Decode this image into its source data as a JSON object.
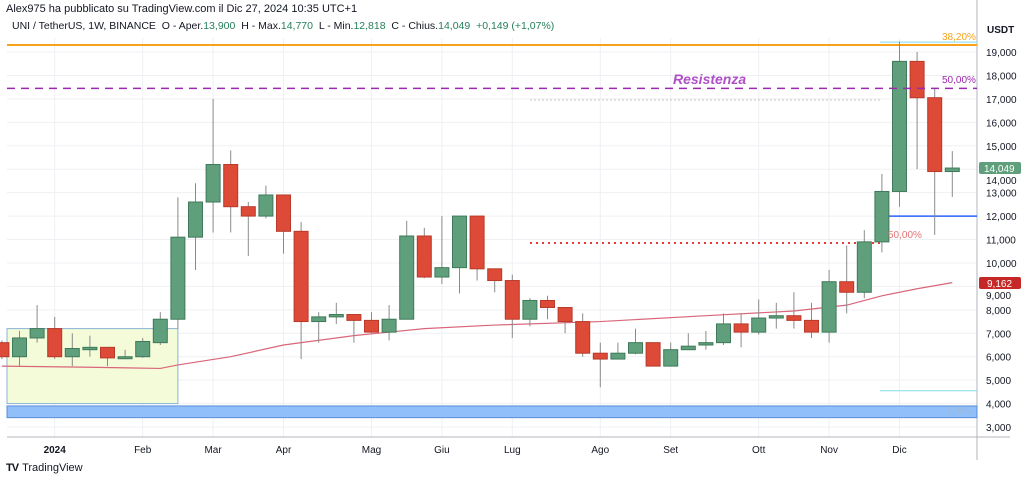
{
  "header": {
    "published": "Alex975 ha pubblicato su TradingView.com il Dic 27, 2024 10:35 UTC+1",
    "symbol": "UNI / TetherUS, 1W, BINANCE",
    "open_label": "O - Aper.",
    "open": "13,900",
    "high_label": "H - Max.",
    "high": "14,770",
    "low_label": "L - Min.",
    "low": "12,818",
    "close_label": "C - Chius.",
    "close": "14,049",
    "change": "+0,149 (+1,07%)"
  },
  "price_axis": {
    "currency": "USDT",
    "ticks": [
      "19,000",
      "18,000",
      "17,000",
      "16,000",
      "15,000",
      "14,000",
      "13,000",
      "12,000",
      "11,000",
      "10,000",
      "9,000",
      "8,000",
      "7,000",
      "6,000",
      "5,000",
      "4,000",
      "3,000"
    ],
    "tick_values": [
      19000,
      18000,
      17000,
      16000,
      15000,
      14000,
      13000,
      12000,
      11000,
      10000,
      9000,
      8000,
      7000,
      6000,
      5000,
      4000,
      3000
    ],
    "last_price_label": "14,049",
    "ma_price_label": "9,162"
  },
  "time_axis": {
    "labels": [
      {
        "text": "2024",
        "candle": 3
      },
      {
        "text": "Feb",
        "candle": 8
      },
      {
        "text": "Mar",
        "candle": 12
      },
      {
        "text": "Apr",
        "candle": 16
      },
      {
        "text": "Mag",
        "candle": 21
      },
      {
        "text": "Giu",
        "candle": 25
      },
      {
        "text": "Lug",
        "candle": 29
      },
      {
        "text": "Ago",
        "candle": 34
      },
      {
        "text": "Set",
        "candle": 38
      },
      {
        "text": "Ott",
        "candle": 43
      },
      {
        "text": "Nov",
        "candle": 47
      },
      {
        "text": "Dic",
        "candle": 51
      }
    ]
  },
  "annotations": {
    "resistance_label": "Resistenza",
    "fib_382_label": "38,20%",
    "fib_50_label": "50,00%",
    "fib_50b_label": "50,00%",
    "fib_0_label": "0,00%",
    "fib_382_price": 19300,
    "resistance_price": 17450,
    "gray_dotted_price": 16950,
    "red_dotted_price": 10850,
    "blue_line_price": 12000,
    "top_cyan_price": 19420,
    "low_cyan_price": 4550,
    "band_prices": [
      3400,
      3900
    ],
    "box_prices": [
      4000,
      7200
    ],
    "colors": {
      "orange": "#f7a21b",
      "purple": "#9c27b0",
      "red": "#e53935",
      "blue": "#2962ff",
      "cyan": "#80deea",
      "band": "#90bff9",
      "box": "#f4fbd9"
    }
  },
  "colors": {
    "up": "#5f9f7c",
    "down": "#dd4a37",
    "ma": "#d9667a",
    "grid": "#eef0f3"
  },
  "chart_data": {
    "type": "candlestick",
    "title": "UNI / TetherUS, 1W, BINANCE",
    "ylabel": "USDT",
    "ylim": [
      2400,
      19800
    ],
    "ohlc": [
      [
        6.6,
        6.7,
        5.9,
        6.0
      ],
      [
        6.0,
        7.1,
        5.6,
        6.8
      ],
      [
        6.8,
        8.2,
        6.6,
        7.2
      ],
      [
        7.2,
        7.7,
        5.9,
        6.0
      ],
      [
        6.0,
        7.0,
        5.6,
        6.35
      ],
      [
        6.3,
        6.9,
        6.0,
        6.4
      ],
      [
        6.4,
        6.4,
        5.6,
        5.95
      ],
      [
        5.95,
        6.3,
        5.9,
        6.0
      ],
      [
        6.0,
        6.8,
        5.95,
        6.65
      ],
      [
        6.6,
        7.9,
        6.5,
        7.6
      ],
      [
        7.6,
        12.8,
        7.2,
        11.1
      ],
      [
        11.1,
        13.4,
        9.7,
        12.6
      ],
      [
        12.6,
        17.0,
        11.3,
        14.2
      ],
      [
        14.2,
        14.8,
        11.3,
        12.4
      ],
      [
        12.4,
        12.6,
        10.3,
        12.0
      ],
      [
        12.0,
        13.3,
        11.9,
        12.9
      ],
      [
        12.9,
        12.9,
        10.4,
        11.35
      ],
      [
        11.35,
        11.75,
        5.9,
        7.5
      ],
      [
        7.5,
        7.9,
        6.6,
        7.7
      ],
      [
        7.7,
        8.3,
        7.4,
        7.8
      ],
      [
        7.8,
        7.8,
        6.6,
        7.55
      ],
      [
        7.55,
        7.9,
        7.0,
        7.05
      ],
      [
        7.05,
        8.2,
        6.7,
        7.6
      ],
      [
        7.6,
        11.8,
        7.6,
        11.15
      ],
      [
        11.15,
        11.5,
        9.35,
        9.4
      ],
      [
        9.4,
        12.0,
        9.1,
        9.8
      ],
      [
        9.8,
        12.0,
        8.7,
        12.0
      ],
      [
        12.0,
        12.0,
        9.25,
        9.75
      ],
      [
        9.75,
        9.75,
        8.75,
        9.25
      ],
      [
        9.25,
        9.5,
        6.8,
        7.6
      ],
      [
        7.6,
        8.5,
        7.3,
        8.4
      ],
      [
        8.4,
        8.6,
        7.6,
        8.1
      ],
      [
        8.1,
        8.1,
        7.0,
        7.5
      ],
      [
        7.5,
        7.85,
        6.0,
        6.15
      ],
      [
        6.15,
        6.6,
        4.7,
        5.9
      ],
      [
        5.9,
        6.6,
        5.9,
        6.15
      ],
      [
        6.15,
        7.2,
        6.1,
        6.6
      ],
      [
        6.6,
        6.6,
        5.6,
        5.6
      ],
      [
        5.6,
        6.6,
        5.6,
        6.3
      ],
      [
        6.3,
        7.0,
        6.3,
        6.45
      ],
      [
        6.5,
        7.1,
        6.3,
        6.6
      ],
      [
        6.6,
        7.85,
        6.5,
        7.4
      ],
      [
        7.4,
        7.85,
        6.4,
        7.05
      ],
      [
        7.05,
        8.45,
        6.95,
        7.65
      ],
      [
        7.65,
        8.3,
        7.2,
        7.75
      ],
      [
        7.75,
        8.75,
        7.2,
        7.55
      ],
      [
        7.55,
        8.3,
        6.8,
        7.05
      ],
      [
        7.05,
        9.7,
        6.6,
        9.2
      ],
      [
        9.2,
        10.75,
        7.85,
        8.75
      ],
      [
        8.75,
        11.4,
        8.5,
        10.9
      ],
      [
        10.9,
        13.8,
        10.45,
        13.05
      ],
      [
        13.05,
        19.45,
        12.4,
        18.6
      ],
      [
        18.6,
        19.0,
        14.0,
        17.05
      ],
      [
        17.05,
        17.45,
        11.2,
        13.9
      ],
      [
        13.9,
        14.77,
        12.818,
        14.049
      ]
    ],
    "ohlc_unit": "thousand USDT",
    "moving_average": [
      [
        0,
        5.6
      ],
      [
        5,
        5.55
      ],
      [
        9,
        5.5
      ],
      [
        10,
        5.65
      ],
      [
        13,
        6.0
      ],
      [
        16,
        6.5
      ],
      [
        20,
        6.9
      ],
      [
        24,
        7.2
      ],
      [
        28,
        7.35
      ],
      [
        34,
        7.5
      ],
      [
        40,
        7.75
      ],
      [
        45,
        7.95
      ],
      [
        48,
        8.2
      ],
      [
        50,
        8.6
      ],
      [
        52,
        8.9
      ],
      [
        54,
        9.162
      ]
    ]
  },
  "footer": {
    "brand": "TradingView"
  }
}
